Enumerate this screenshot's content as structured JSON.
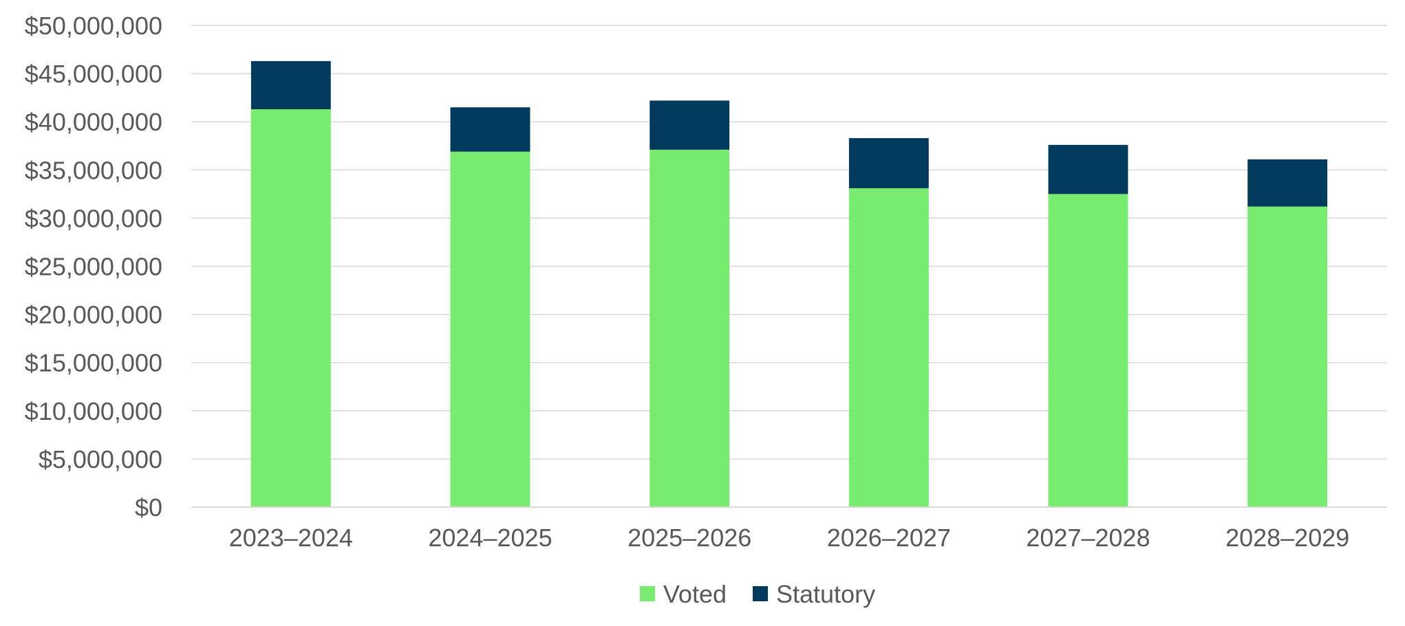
{
  "chart_data": {
    "type": "bar",
    "stacked": true,
    "title": "",
    "xlabel": "",
    "ylabel": "",
    "categories": [
      "2023–2024",
      "2024–2025",
      "2025–2026",
      "2026–2027",
      "2027–2028",
      "2028–2029"
    ],
    "series": [
      {
        "name": "Voted",
        "color": "#77ec6f",
        "values": [
          41300000,
          36900000,
          37100000,
          33100000,
          32500000,
          31200000
        ]
      },
      {
        "name": "Statutory",
        "color": "#003a5d",
        "values": [
          5000000,
          4600000,
          5100000,
          5200000,
          5100000,
          4900000
        ]
      }
    ],
    "ylim": [
      0,
      50000000
    ],
    "y_ticks": [
      0,
      5000000,
      10000000,
      15000000,
      20000000,
      25000000,
      30000000,
      35000000,
      40000000,
      45000000,
      50000000
    ],
    "y_tick_labels": [
      "$0",
      "$5,000,000",
      "$10,000,000",
      "$15,000,000",
      "$20,000,000",
      "$25,000,000",
      "$30,000,000",
      "$35,000,000",
      "$40,000,000",
      "$45,000,000",
      "$50,000,000"
    ],
    "grid": true,
    "legend": "bottom-center"
  }
}
